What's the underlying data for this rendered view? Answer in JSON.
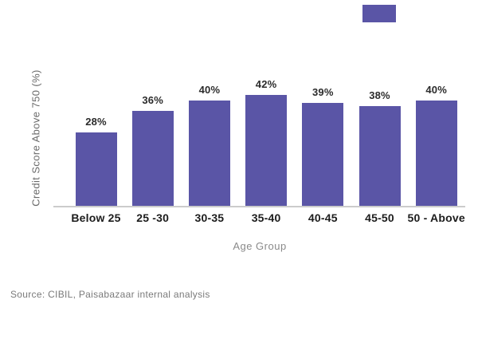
{
  "page": {
    "background_color": "#ffffff"
  },
  "decorative": {
    "top_right_rect_color": "#5a55a6"
  },
  "chart_data": {
    "type": "bar",
    "title": "",
    "categories": [
      "Below 25",
      "25 -30",
      "30-35",
      "35-40",
      "40-45",
      "45-50",
      "50 - Above"
    ],
    "values": [
      28,
      36,
      40,
      42,
      39,
      38,
      40
    ],
    "value_labels": [
      "28%",
      "36%",
      "40%",
      "42%",
      "39%",
      "38%",
      "40%"
    ],
    "xlabel": "Age Group",
    "ylabel": "Credit Score Above 750 (%)",
    "ylim": [
      0,
      45
    ],
    "grid": false,
    "legend": false,
    "bar_color": "#5a55a6",
    "axis_line_color": "#cccccc",
    "value_label_color": "#2b2b2b",
    "category_label_color": "#1c1c1c",
    "axis_title_color": "#8a8a8a"
  },
  "footer": {
    "source_text": "Source: CIBIL, Paisabazaar internal analysis"
  }
}
